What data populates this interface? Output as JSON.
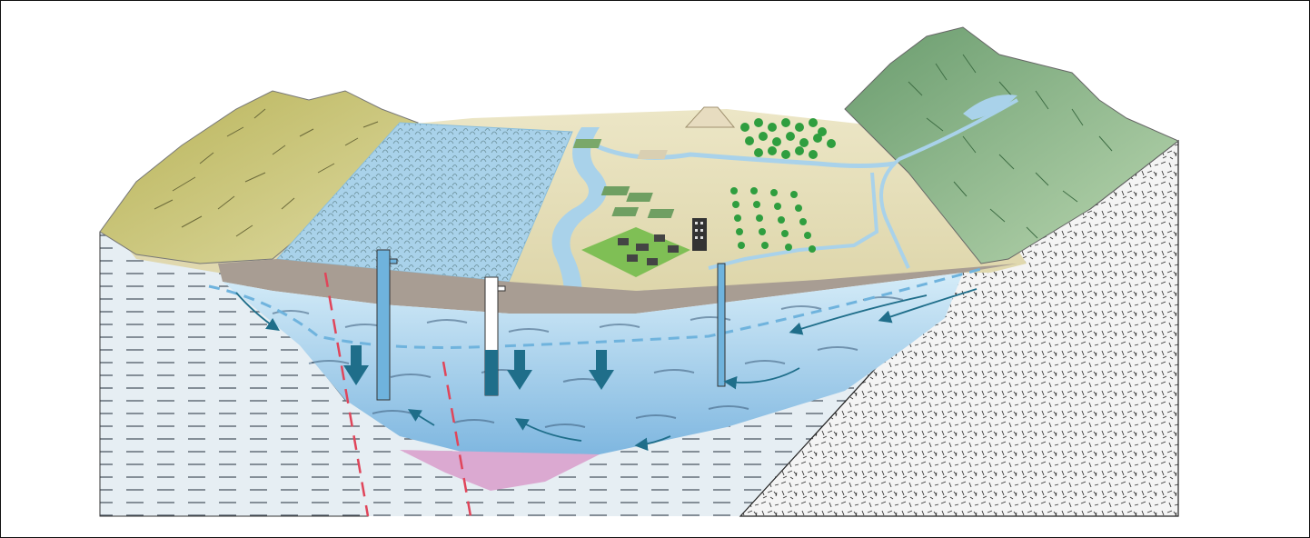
{
  "diagram": {
    "title": "",
    "labels": [],
    "colors": {
      "frame": "#111111",
      "clay_fill": "#e6eef3",
      "clay_dash": "#4a5560",
      "bedrock_fill": "#f2f2f2",
      "aquifer_light": "#cfe8f6",
      "aquifer_deep": "#8ec1e4",
      "saline_zone": "#dba9d1",
      "fault_line": "#e0455a",
      "flow_arrow": "#1f6e8a",
      "water_table": "#6fb3dd",
      "soil_band": "#a89d93",
      "valley_floor": "#e7dfb8",
      "left_hills": "#c9c46f",
      "right_mountains": "#7fae80",
      "crop_field": "#a9d2ea",
      "trees": "#2f9e3f"
    },
    "elements": [
      {
        "name": "left-hills",
        "kind": "terrain"
      },
      {
        "name": "right-mountains",
        "kind": "terrain"
      },
      {
        "name": "irrigated-field",
        "kind": "land-use"
      },
      {
        "name": "river",
        "kind": "surface-water"
      },
      {
        "name": "lake",
        "kind": "surface-water"
      },
      {
        "name": "town",
        "kind": "settlement"
      },
      {
        "name": "orchard",
        "kind": "land-use"
      },
      {
        "name": "pumping-well",
        "kind": "well",
        "count": 3
      },
      {
        "name": "fault",
        "kind": "structure",
        "count": 2
      },
      {
        "name": "water-table",
        "kind": "boundary"
      },
      {
        "name": "saline-zone",
        "kind": "aquifer-zone"
      }
    ]
  }
}
